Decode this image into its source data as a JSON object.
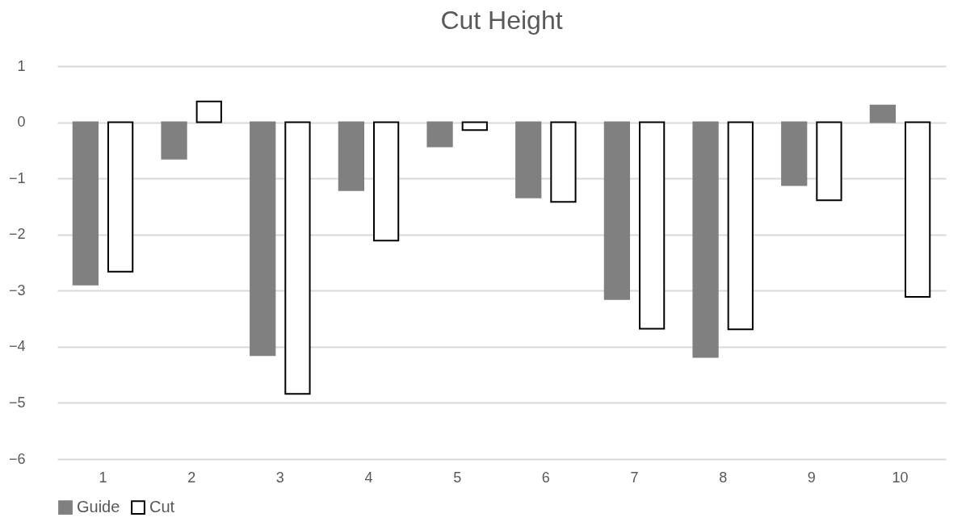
{
  "chart_data": {
    "type": "bar",
    "title": "Cut Height",
    "categories": [
      "1",
      "2",
      "3",
      "4",
      "5",
      "6",
      "7",
      "8",
      "9",
      "10"
    ],
    "series": [
      {
        "name": "Guide",
        "color": "#808080",
        "values": [
          -2.89,
          -0.65,
          -4.15,
          -1.21,
          -0.43,
          -1.34,
          -3.15,
          -4.18,
          -1.12,
          0.3
        ]
      },
      {
        "name": "Cut",
        "color": "#ffffff",
        "values": [
          -2.66,
          0.37,
          -4.84,
          -2.11,
          -0.14,
          -1.42,
          -3.68,
          -3.69,
          -1.39,
          -3.11
        ]
      }
    ],
    "ylim": [
      -6,
      1
    ],
    "yticks": [
      -6,
      -5,
      -4,
      -3,
      -2,
      -1,
      0,
      1
    ],
    "grid": "y",
    "legend": "bottom"
  }
}
